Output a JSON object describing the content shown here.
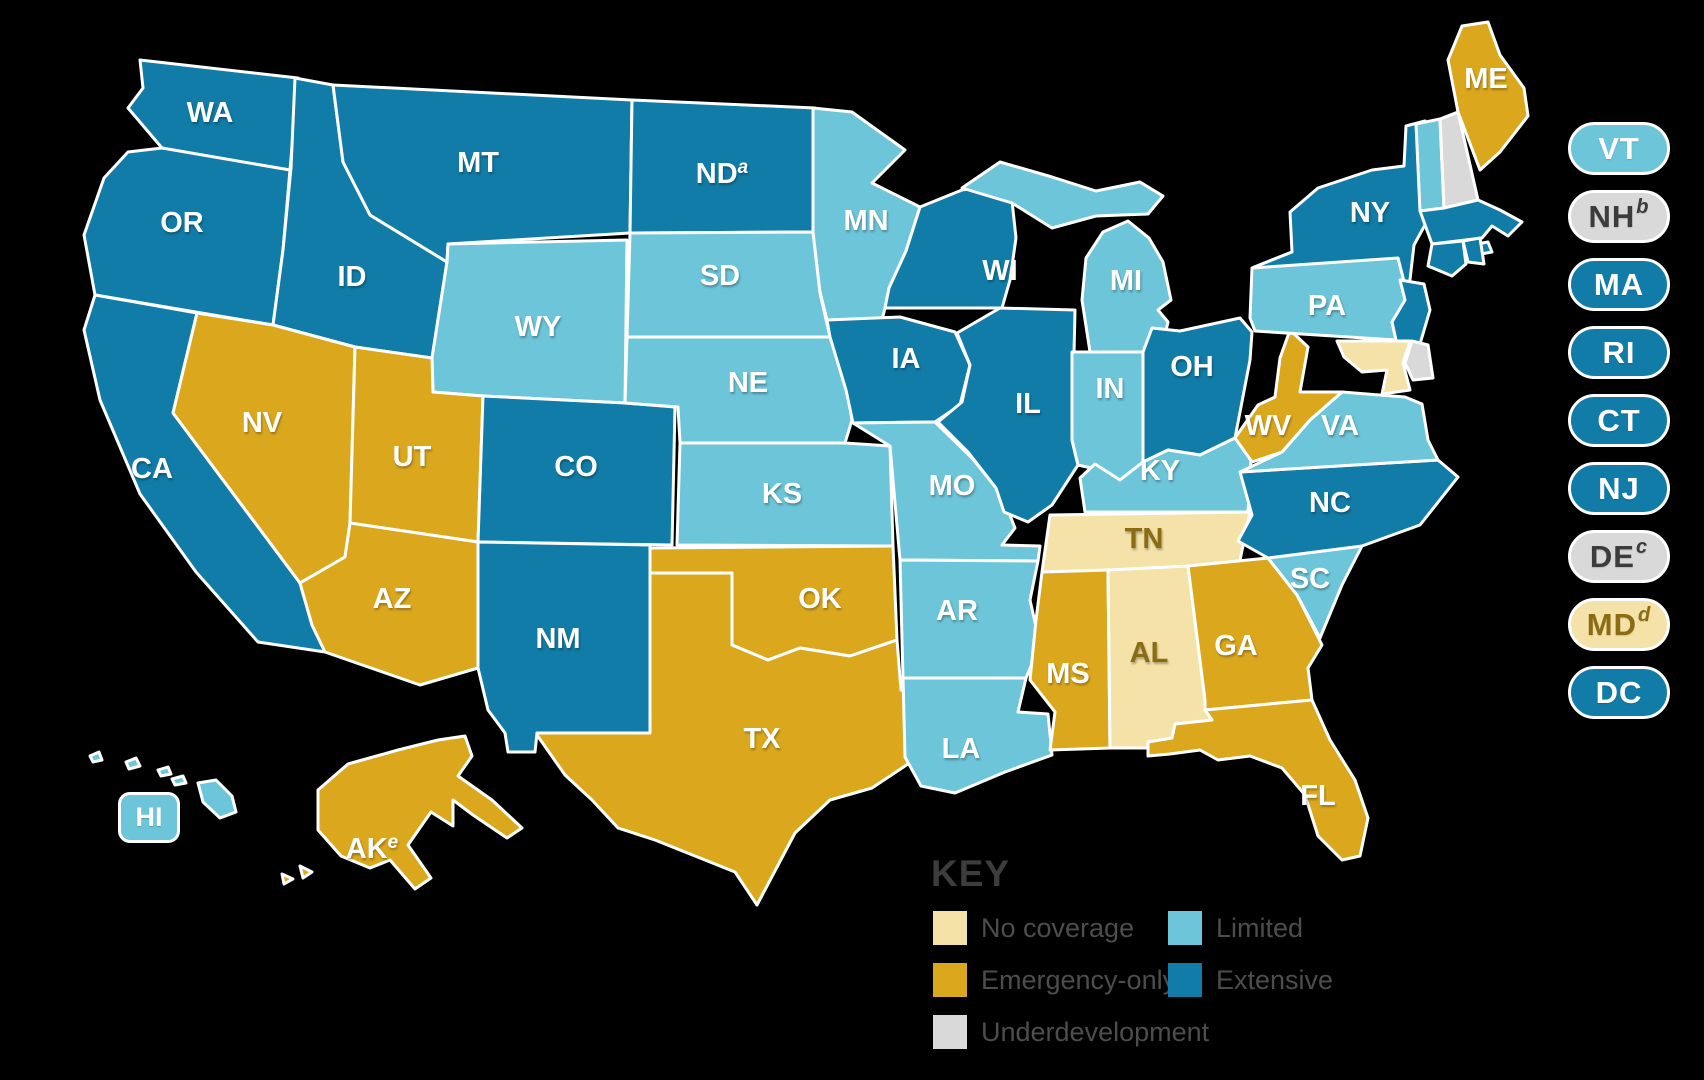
{
  "categories": {
    "none": {
      "label": "No coverage",
      "color": "#F4E2A8"
    },
    "emergency": {
      "label": "Emergency-only",
      "color": "#DBA81D"
    },
    "limited": {
      "label": "Limited",
      "color": "#6CC5D8"
    },
    "extensive": {
      "label": "Extensive",
      "color": "#117CA7"
    },
    "underdev": {
      "label": "Underdevelopment",
      "color": "#D9D9D9"
    }
  },
  "key": {
    "title": "KEY",
    "column1": [
      "none",
      "emergency",
      "underdev"
    ],
    "column2": [
      "limited",
      "extensive"
    ]
  },
  "text_colors": {
    "on_cream": "#8A6D13",
    "on_gray": "#3C3C3C",
    "key_title": "#3D3D3D",
    "key_label": "#4D4D4D",
    "state_label": "#FFFFFF"
  },
  "states": [
    {
      "abbr": "WA",
      "category": "extensive"
    },
    {
      "abbr": "OR",
      "category": "extensive"
    },
    {
      "abbr": "CA",
      "category": "extensive"
    },
    {
      "abbr": "ID",
      "category": "extensive"
    },
    {
      "abbr": "NV",
      "category": "emergency"
    },
    {
      "abbr": "MT",
      "category": "extensive"
    },
    {
      "abbr": "WY",
      "category": "limited"
    },
    {
      "abbr": "UT",
      "category": "emergency"
    },
    {
      "abbr": "CO",
      "category": "extensive"
    },
    {
      "abbr": "AZ",
      "category": "emergency"
    },
    {
      "abbr": "NM",
      "category": "extensive"
    },
    {
      "abbr": "ND",
      "category": "extensive",
      "note": "a"
    },
    {
      "abbr": "SD",
      "category": "limited"
    },
    {
      "abbr": "NE",
      "category": "limited"
    },
    {
      "abbr": "KS",
      "category": "limited"
    },
    {
      "abbr": "OK",
      "category": "emergency"
    },
    {
      "abbr": "TX",
      "category": "emergency"
    },
    {
      "abbr": "MN",
      "category": "limited"
    },
    {
      "abbr": "IA",
      "category": "extensive"
    },
    {
      "abbr": "MO",
      "category": "limited"
    },
    {
      "abbr": "AR",
      "category": "limited"
    },
    {
      "abbr": "LA",
      "category": "limited"
    },
    {
      "abbr": "WI",
      "category": "extensive"
    },
    {
      "abbr": "IL",
      "category": "extensive"
    },
    {
      "abbr": "MS",
      "category": "emergency"
    },
    {
      "abbr": "MI",
      "category": "limited"
    },
    {
      "abbr": "IN",
      "category": "limited"
    },
    {
      "abbr": "OH",
      "category": "extensive"
    },
    {
      "abbr": "KY",
      "category": "limited"
    },
    {
      "abbr": "TN",
      "category": "none"
    },
    {
      "abbr": "AL",
      "category": "none"
    },
    {
      "abbr": "GA",
      "category": "emergency"
    },
    {
      "abbr": "FL",
      "category": "emergency"
    },
    {
      "abbr": "SC",
      "category": "limited"
    },
    {
      "abbr": "NC",
      "category": "extensive"
    },
    {
      "abbr": "VA",
      "category": "limited"
    },
    {
      "abbr": "WV",
      "category": "emergency"
    },
    {
      "abbr": "PA",
      "category": "limited"
    },
    {
      "abbr": "NY",
      "category": "extensive"
    },
    {
      "abbr": "NJ",
      "category": "extensive"
    },
    {
      "abbr": "DE",
      "category": "underdev",
      "note": "c"
    },
    {
      "abbr": "MD",
      "category": "none",
      "note": "d"
    },
    {
      "abbr": "VT",
      "category": "limited"
    },
    {
      "abbr": "NH",
      "category": "underdev",
      "note": "b"
    },
    {
      "abbr": "MA",
      "category": "extensive"
    },
    {
      "abbr": "RI",
      "category": "extensive"
    },
    {
      "abbr": "CT",
      "category": "extensive"
    },
    {
      "abbr": "ME",
      "category": "emergency"
    },
    {
      "abbr": "AK",
      "category": "emergency",
      "note": "e"
    },
    {
      "abbr": "HI",
      "category": "limited"
    },
    {
      "abbr": "DC",
      "category": "extensive"
    }
  ],
  "pills": [
    "VT",
    "NH",
    "MA",
    "RI",
    "CT",
    "NJ",
    "DE",
    "MD",
    "DC"
  ],
  "hi_pill_label": "HI"
}
